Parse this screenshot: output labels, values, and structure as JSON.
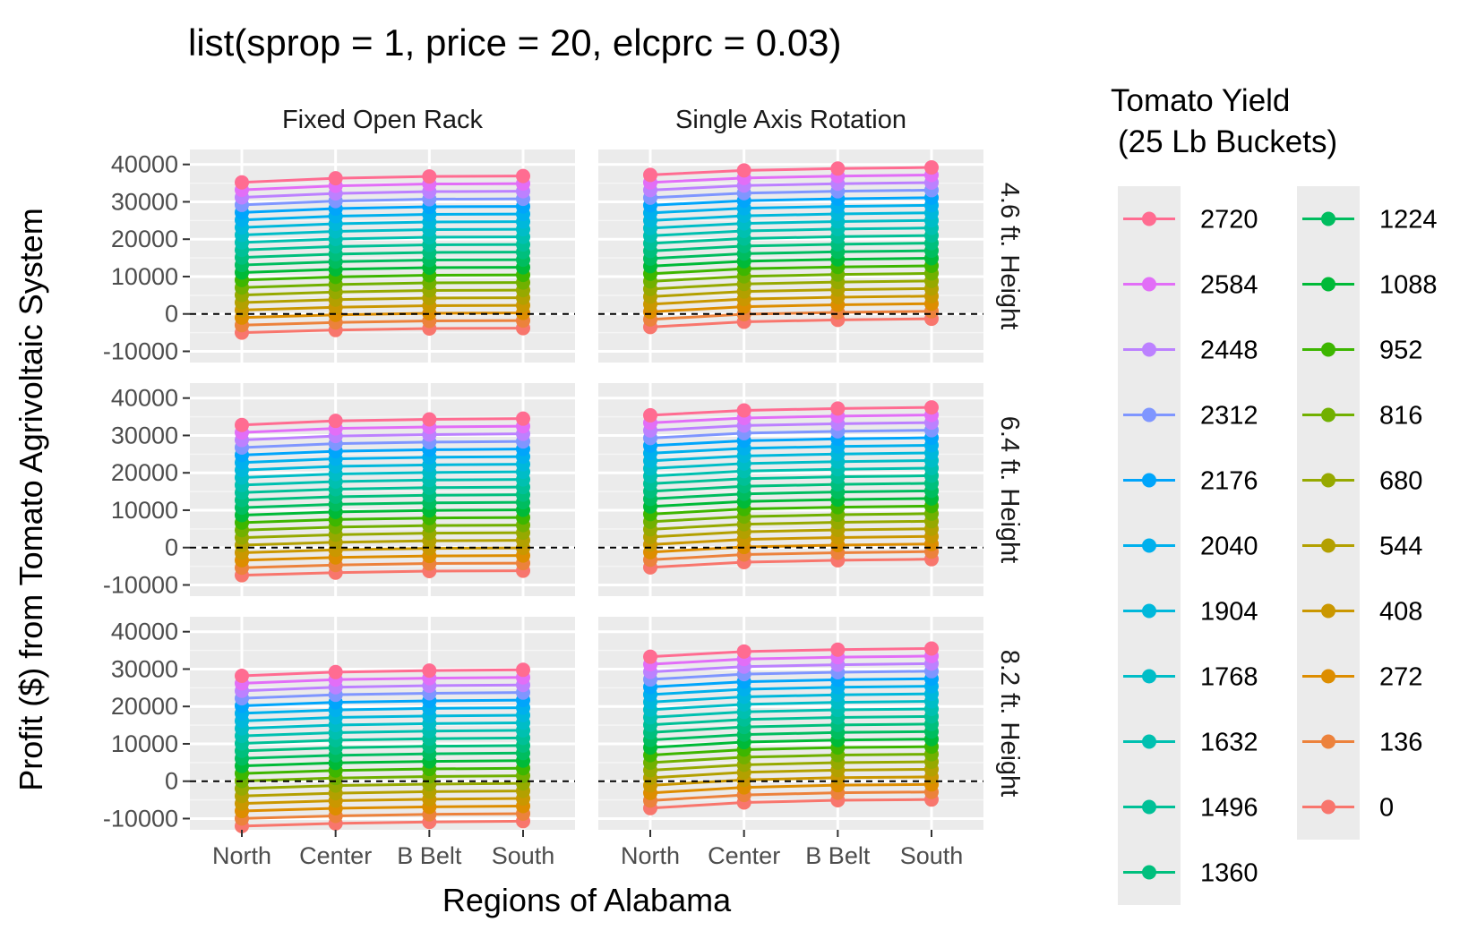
{
  "chart_data": {
    "type": "line",
    "title": "list(sprop = 1, price = 20, elcprc = 0.03)",
    "xlabel": "Regions of Alabama",
    "ylabel": "Profit ($) from Tomato Agrivoltaic System",
    "categories": [
      "North",
      "Center",
      "B Belt",
      "South"
    ],
    "ylim": [
      -13000,
      44000
    ],
    "yticks": [
      "-10000",
      "0",
      "10000",
      "20000",
      "30000",
      "40000"
    ],
    "reference_line": 0,
    "grid": true,
    "columns": [
      "Fixed Open Rack",
      "Single Axis Rotation"
    ],
    "rows": [
      "4.6 ft. Height",
      "6.4 ft. Height",
      "8.2 ft. Height"
    ],
    "legend": {
      "title_line1": "Tomato Yield",
      "title_line2": "(25 Lb Buckets)",
      "position": "right",
      "entries": [
        "2720",
        "2584",
        "2448",
        "2312",
        "2176",
        "2040",
        "1904",
        "1768",
        "1632",
        "1496",
        "1360",
        "1224",
        "1088",
        "952",
        "816",
        "680",
        "544",
        "408",
        "272",
        "136",
        "0"
      ],
      "colors": [
        "#F8766D",
        "#EC823C",
        "#DD8D00",
        "#CA9700",
        "#B3A000",
        "#96A900",
        "#71B000",
        "#3DB600",
        "#00BA38",
        "#00BD5F",
        "#00BF7D",
        "#00C097",
        "#00C0B0",
        "#00BDC7",
        "#00B8DB",
        "#00B0ED",
        "#00A5FB",
        "#7F96FF",
        "#BC81FF",
        "#E26EF7",
        "#FF6C91"
      ]
    },
    "panels": [
      {
        "column": "Fixed Open Rack",
        "row": "4.6 ft. Height",
        "series": [
          {
            "name": "0",
            "values": [
              -5000,
              -4300,
              -3900,
              -3800
            ]
          },
          {
            "name": "2720",
            "values": [
              35200,
              36300,
              36800,
              36900
            ]
          }
        ]
      },
      {
        "column": "Single Axis Rotation",
        "row": "4.6 ft. Height",
        "series": [
          {
            "name": "0",
            "values": [
              -3500,
              -2100,
              -1600,
              -1300
            ]
          },
          {
            "name": "2720",
            "values": [
              37200,
              38400,
              38900,
              39200
            ]
          }
        ]
      },
      {
        "column": "Fixed Open Rack",
        "row": "6.4 ft. Height",
        "series": [
          {
            "name": "0",
            "values": [
              -7400,
              -6700,
              -6300,
              -6200
            ]
          },
          {
            "name": "2720",
            "values": [
              32800,
              33900,
              34300,
              34500
            ]
          }
        ]
      },
      {
        "column": "Single Axis Rotation",
        "row": "6.4 ft. Height",
        "series": [
          {
            "name": "0",
            "values": [
              -5300,
              -3900,
              -3400,
              -3100
            ]
          },
          {
            "name": "2720",
            "values": [
              35400,
              36700,
              37200,
              37500
            ]
          }
        ]
      },
      {
        "column": "Fixed Open Rack",
        "row": "8.2 ft. Height",
        "series": [
          {
            "name": "0",
            "values": [
              -12000,
              -11300,
              -10900,
              -10700
            ]
          },
          {
            "name": "2720",
            "values": [
              28200,
              29200,
              29600,
              29800
            ]
          }
        ]
      },
      {
        "column": "Single Axis Rotation",
        "row": "8.2 ft. Height",
        "series": [
          {
            "name": "0",
            "values": [
              -7200,
              -5700,
              -5100,
              -4900
            ]
          },
          {
            "name": "2720",
            "values": [
              33300,
              34700,
              35200,
              35500
            ]
          }
        ]
      }
    ]
  }
}
